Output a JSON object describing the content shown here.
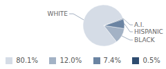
{
  "chart_data": {
    "type": "pie",
    "categories": [
      "WHITE",
      "BLACK",
      "HISPANIC",
      "A.I."
    ],
    "values": [
      80.1,
      12.0,
      7.4,
      0.5
    ],
    "value_labels": [
      "80.1%",
      "12.0%",
      "7.4%",
      "0.5%"
    ],
    "colors": [
      "#d5dce6",
      "#a3b2c5",
      "#6b84a2",
      "#2e4c70"
    ],
    "legend": "bottom"
  }
}
